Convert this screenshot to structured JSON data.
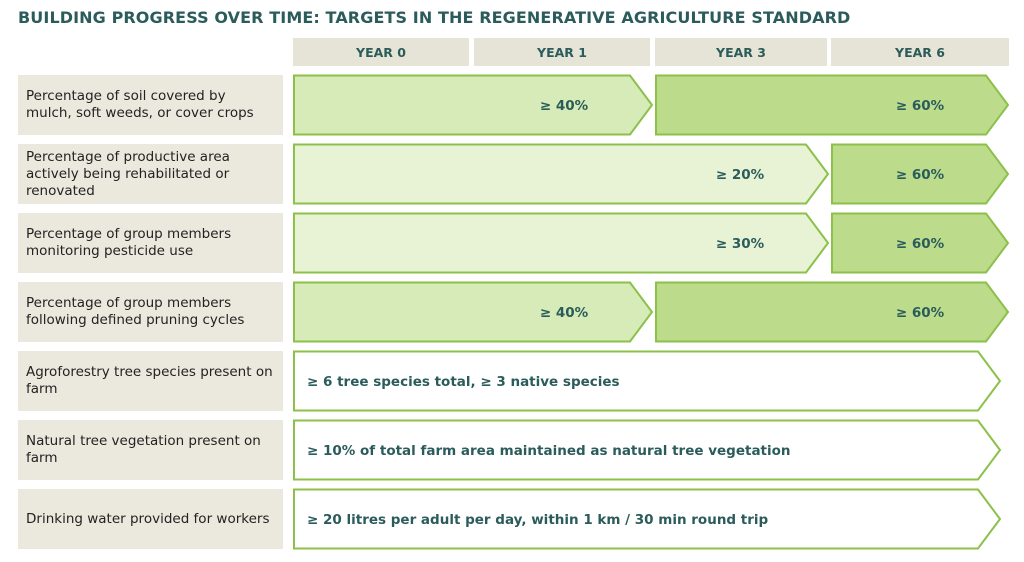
{
  "title": "BUILDING PROGRESS OVER TIME: TARGETS IN THE REGENERATIVE AGRICULTURE STANDARD",
  "years": [
    "YEAR 0",
    "YEAR 1",
    "YEAR 3",
    "YEAR 6"
  ],
  "colors": {
    "title": "#2b5c5b",
    "header_bg": "#e6e4d6",
    "label_bg": "#ebe9dd",
    "stage_light": "#e8f3d6",
    "stage_mid": "#d6ebb8",
    "stage_dark": "#bcdc8c",
    "stroke": "#8cc04a"
  },
  "rows": [
    {
      "label": "Percentage of soil covered by mulch, soft weeds, or cover crops",
      "segments": [
        {
          "from": "YEAR 0",
          "to": "YEAR 1",
          "value": "≥ 40%",
          "shade": "mid"
        },
        {
          "from": "YEAR 3",
          "to": "YEAR 6",
          "value": "≥ 60%",
          "shade": "dark"
        }
      ]
    },
    {
      "label": "Percentage of productive area actively being rehabilitated or renovated",
      "segments": [
        {
          "from": "YEAR 0",
          "to": "YEAR 3",
          "value": "≥ 20%",
          "shade": "light"
        },
        {
          "from": "YEAR 6",
          "to": "YEAR 6",
          "value": "≥ 60%",
          "shade": "dark"
        }
      ]
    },
    {
      "label": "Percentage of group members monitoring pesticide use",
      "segments": [
        {
          "from": "YEAR 0",
          "to": "YEAR 3",
          "value": "≥ 30%",
          "shade": "light"
        },
        {
          "from": "YEAR 6",
          "to": "YEAR 6",
          "value": "≥ 60%",
          "shade": "dark"
        }
      ]
    },
    {
      "label": "Percentage of group members following defined pruning cycles",
      "segments": [
        {
          "from": "YEAR 0",
          "to": "YEAR 1",
          "value": "≥ 40%",
          "shade": "mid"
        },
        {
          "from": "YEAR 3",
          "to": "YEAR 6",
          "value": "≥ 60%",
          "shade": "dark"
        }
      ]
    },
    {
      "label": "Agroforestry tree species present on farm",
      "segments": [
        {
          "from": "YEAR 0",
          "to": "YEAR 6",
          "value": "≥ 6 tree species total, ≥ 3 native species",
          "shade": "white"
        }
      ]
    },
    {
      "label": "Natural tree vegetation present on farm",
      "segments": [
        {
          "from": "YEAR 0",
          "to": "YEAR 6",
          "value": "≥ 10% of total farm area maintained as natural tree vegetation",
          "shade": "white"
        }
      ]
    },
    {
      "label": "Drinking water provided for workers",
      "segments": [
        {
          "from": "YEAR 0",
          "to": "YEAR 6",
          "value": "≥ 20 litres per adult per day, within 1 km / 30 min round trip",
          "shade": "white"
        }
      ]
    }
  ]
}
